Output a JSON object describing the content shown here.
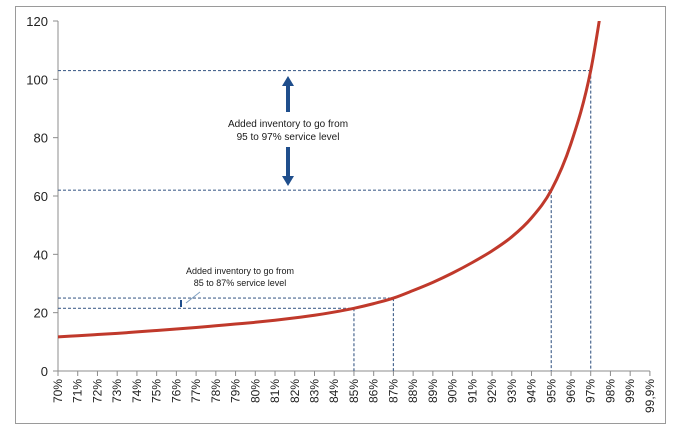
{
  "chart_data": {
    "type": "line",
    "title": "",
    "xlabel": "",
    "ylabel": "",
    "ylim": [
      0,
      120
    ],
    "yticks": [
      0,
      20,
      40,
      60,
      80,
      100,
      120
    ],
    "grid": false,
    "legend": null,
    "categories": [
      "70%",
      "71%",
      "72%",
      "73%",
      "74%",
      "75%",
      "76%",
      "77%",
      "78%",
      "79%",
      "80%",
      "81%",
      "82%",
      "83%",
      "84%",
      "85%",
      "86%",
      "87%",
      "88%",
      "89%",
      "90%",
      "91%",
      "92%",
      "93%",
      "94%",
      "95%",
      "96%",
      "97%",
      "98%",
      "99%",
      "99,9%"
    ],
    "series": [
      {
        "name": "Inventory",
        "color": "#c0392b",
        "values": [
          11.7,
          12.1,
          12.5,
          12.9,
          13.4,
          13.9,
          14.4,
          14.9,
          15.5,
          16.1,
          16.7,
          17.4,
          18.2,
          19.1,
          20.2,
          21.5,
          23.1,
          25.0,
          27.6,
          30.4,
          33.6,
          37.2,
          41.2,
          46.0,
          52.5,
          62.0,
          78.0,
          103.0,
          145.0,
          null,
          null
        ]
      }
    ],
    "reference_lines": [
      {
        "label": "85%",
        "x_index": 15,
        "y": 21.5
      },
      {
        "label": "87%",
        "x_index": 17,
        "y": 25.0
      },
      {
        "label": "95%",
        "x_index": 25,
        "y": 62.0
      },
      {
        "label": "97%",
        "x_index": 27,
        "y": 103.0
      }
    ],
    "annotations": [
      {
        "text_line1": "Added inventory to go from",
        "text_line2": "95 to 97% service level",
        "between": [
          62.0,
          103.0
        ]
      },
      {
        "text_line1": "Added inventory to go from",
        "text_line2": "85 to 87% service level",
        "between": [
          21.5,
          25.0
        ]
      }
    ]
  },
  "colors": {
    "curve": "#c0392b",
    "dashed": "#4a6790",
    "arrow": "#1f4e8c",
    "axis": "#8c8c8c",
    "frame": "#9a9a9a"
  }
}
